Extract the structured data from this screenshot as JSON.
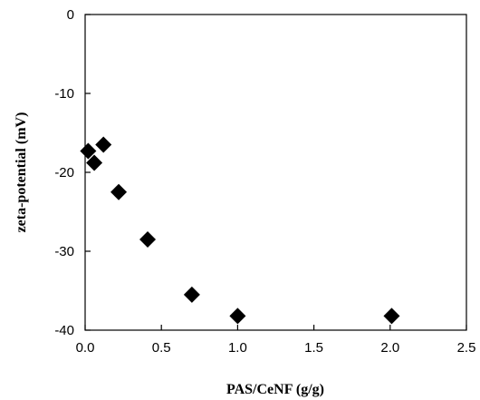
{
  "chart_data": {
    "type": "scatter",
    "title": "",
    "xlabel": "PAS/CeNF (g/g)",
    "ylabel": "zeta-potential (mV)",
    "xlim": [
      0,
      2.5
    ],
    "ylim": [
      -40,
      0
    ],
    "x_ticks": [
      0,
      0.5,
      1,
      1.5,
      2,
      2.5
    ],
    "x_tick_labels": [
      "0.0",
      "0.5",
      "1.0",
      "1.5",
      "2.0",
      "2.5"
    ],
    "y_ticks": [
      0,
      -10,
      -20,
      -30,
      -40
    ],
    "y_tick_labels": [
      "0",
      "-10",
      "-20",
      "-30",
      "-40"
    ],
    "grid": false,
    "marker": "diamond",
    "marker_color": "#000000",
    "series": [
      {
        "points": [
          {
            "x": 0.02,
            "y": -17.3
          },
          {
            "x": 0.06,
            "y": -18.8
          },
          {
            "x": 0.12,
            "y": -16.5
          },
          {
            "x": 0.22,
            "y": -22.5
          },
          {
            "x": 0.41,
            "y": -28.5
          },
          {
            "x": 0.7,
            "y": -35.5
          },
          {
            "x": 1.0,
            "y": -38.2
          },
          {
            "x": 2.01,
            "y": -38.2
          }
        ]
      }
    ]
  }
}
